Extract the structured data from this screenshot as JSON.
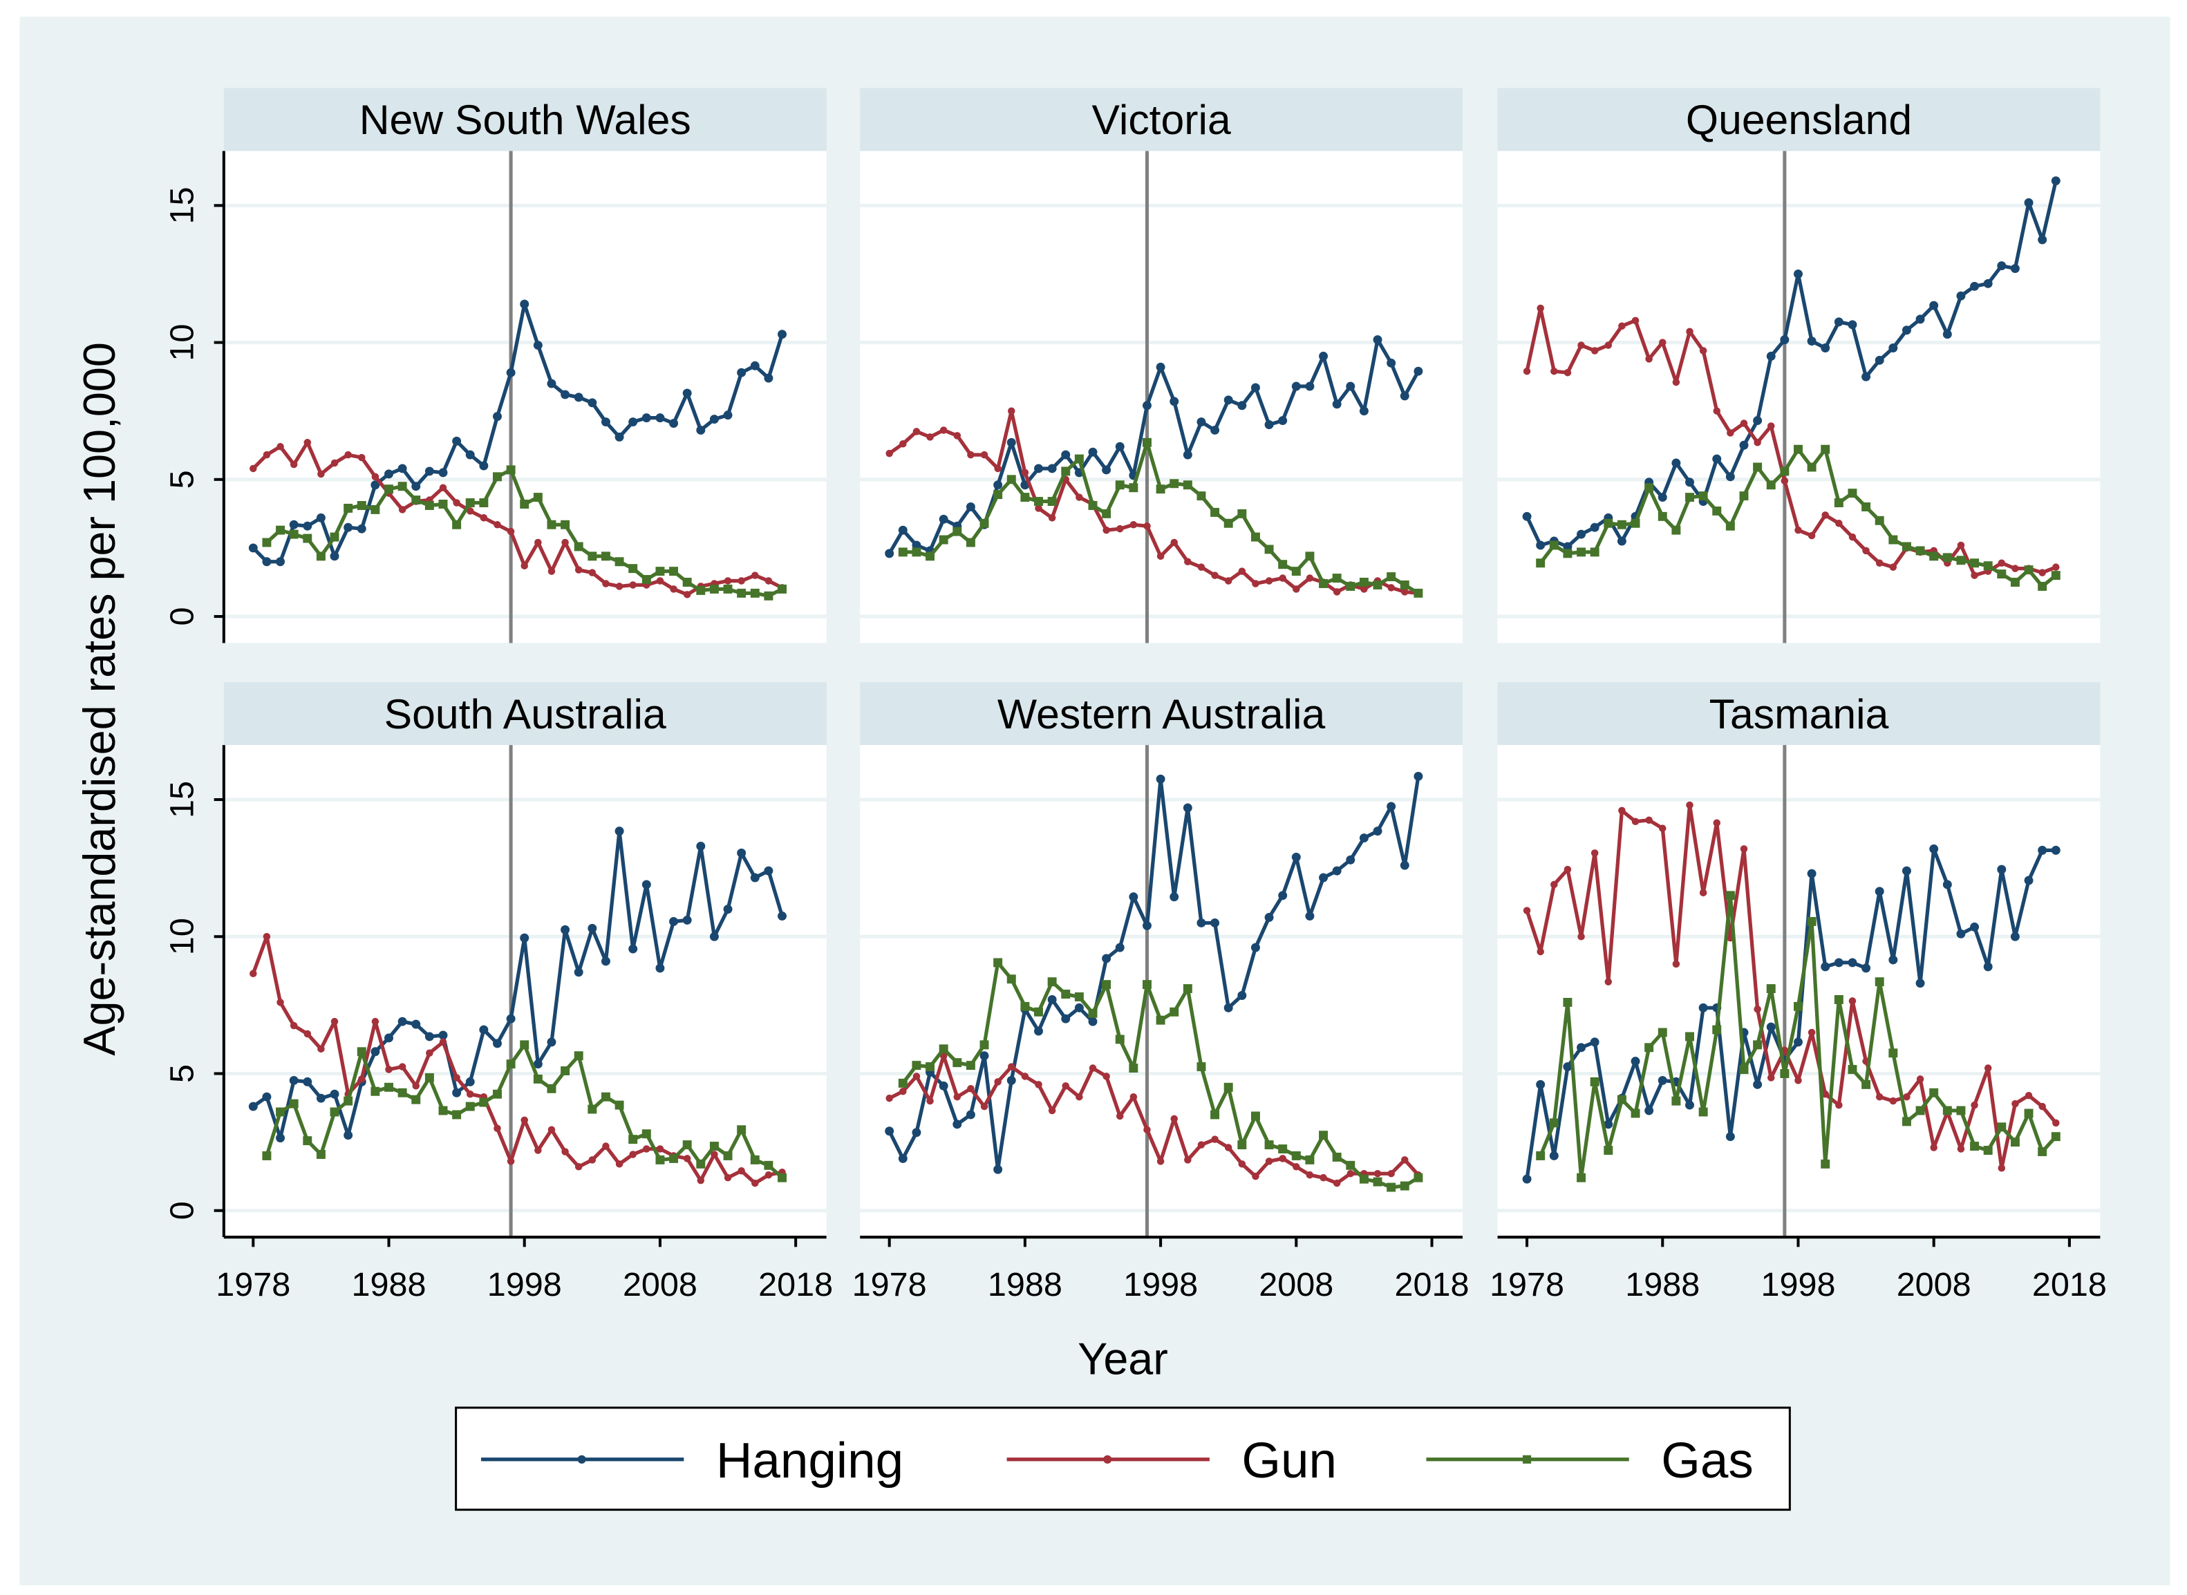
{
  "chart_data": {
    "type": "line",
    "layout": "small-multiples 2x3",
    "ylabel": "Age-standardised rates per 100,000",
    "xlabel": "Year",
    "xticks": [
      1978,
      1988,
      1998,
      2008,
      2018
    ],
    "yticks": [
      0,
      5,
      10,
      15
    ],
    "xlim": [
      1978,
      2018
    ],
    "ylim": [
      0,
      15
    ],
    "reference_line_year": 1997,
    "grid": true,
    "legend": {
      "placement": "bottom",
      "entries": [
        "Hanging",
        "Gun",
        "Gas"
      ]
    },
    "colors": {
      "Hanging": "#1a476f",
      "Gun": "#a5313b",
      "Gas": "#46742a"
    },
    "years": [
      1978,
      1979,
      1980,
      1981,
      1982,
      1983,
      1984,
      1985,
      1986,
      1987,
      1988,
      1989,
      1990,
      1991,
      1992,
      1993,
      1994,
      1995,
      1996,
      1997,
      1998,
      1999,
      2000,
      2001,
      2002,
      2003,
      2004,
      2005,
      2006,
      2007,
      2008,
      2009,
      2010,
      2011,
      2012,
      2013,
      2014,
      2015,
      2016,
      2017
    ],
    "panels": [
      {
        "title": "New South Wales",
        "series": [
          {
            "name": "Hanging",
            "values": [
              2.5,
              2.0,
              2.0,
              3.35,
              3.3,
              3.6,
              2.2,
              3.25,
              3.2,
              4.8,
              5.2,
              5.4,
              4.75,
              5.3,
              5.25,
              6.4,
              5.9,
              5.5,
              7.3,
              8.9,
              11.4,
              9.9,
              8.5,
              8.1,
              8.0,
              7.8,
              7.1,
              6.55,
              7.1,
              7.25,
              7.25,
              7.05,
              8.15,
              6.8,
              7.2,
              7.35,
              8.9,
              9.15,
              8.7,
              10.3
            ]
          },
          {
            "name": "Gun",
            "values": [
              5.4,
              5.9,
              6.2,
              5.55,
              6.35,
              5.2,
              5.6,
              5.9,
              5.8,
              5.1,
              4.5,
              3.9,
              4.2,
              4.25,
              4.7,
              4.15,
              3.85,
              3.6,
              3.35,
              3.1,
              1.85,
              2.7,
              1.65,
              2.7,
              1.7,
              1.6,
              1.2,
              1.1,
              1.15,
              1.15,
              1.3,
              1.0,
              0.8,
              1.1,
              1.2,
              1.3,
              1.3,
              1.5,
              1.3,
              1.05
            ]
          },
          {
            "name": "Gas",
            "values": [
              null,
              2.7,
              3.15,
              3.0,
              2.85,
              2.2,
              2.9,
              3.95,
              4.05,
              3.9,
              4.65,
              4.75,
              4.25,
              4.05,
              4.1,
              3.35,
              4.15,
              4.15,
              5.1,
              5.35,
              4.1,
              4.35,
              3.35,
              3.35,
              2.55,
              2.2,
              2.2,
              2.0,
              1.75,
              1.35,
              1.65,
              1.65,
              1.25,
              0.95,
              1.0,
              1.0,
              0.85,
              0.85,
              0.75,
              1.0
            ]
          }
        ]
      },
      {
        "title": "Victoria",
        "series": [
          {
            "name": "Hanging",
            "values": [
              2.3,
              3.15,
              2.6,
              2.4,
              3.55,
              3.3,
              4.0,
              3.35,
              4.8,
              6.35,
              4.8,
              5.4,
              5.4,
              5.9,
              5.25,
              6.0,
              5.35,
              6.2,
              5.15,
              7.7,
              9.1,
              7.85,
              5.9,
              7.1,
              6.8,
              7.9,
              7.7,
              8.35,
              7.0,
              7.15,
              8.4,
              8.4,
              9.5,
              7.75,
              8.4,
              7.5,
              10.1,
              9.25,
              8.05,
              8.95
            ]
          },
          {
            "name": "Gun",
            "values": [
              5.95,
              6.3,
              6.75,
              6.55,
              6.8,
              6.6,
              5.9,
              5.9,
              5.4,
              7.5,
              5.25,
              3.95,
              3.6,
              5.0,
              4.35,
              4.1,
              3.15,
              3.2,
              3.35,
              3.3,
              2.2,
              2.7,
              2.0,
              1.8,
              1.5,
              1.3,
              1.65,
              1.2,
              1.3,
              1.4,
              1.0,
              1.4,
              1.25,
              0.9,
              1.15,
              1.0,
              1.3,
              1.05,
              0.9,
              0.85
            ]
          },
          {
            "name": "Gas",
            "values": [
              null,
              2.35,
              2.35,
              2.2,
              2.8,
              3.1,
              2.7,
              3.4,
              4.45,
              5.0,
              4.35,
              4.2,
              4.2,
              5.3,
              5.75,
              4.05,
              3.75,
              4.8,
              4.7,
              6.35,
              4.65,
              4.85,
              4.8,
              4.4,
              3.8,
              3.4,
              3.75,
              2.9,
              2.45,
              1.9,
              1.65,
              2.2,
              1.2,
              1.4,
              1.1,
              1.25,
              1.15,
              1.45,
              1.15,
              0.85
            ]
          }
        ]
      },
      {
        "title": "Queensland",
        "series": [
          {
            "name": "Hanging",
            "values": [
              3.65,
              2.6,
              2.75,
              2.55,
              3.0,
              3.25,
              3.6,
              2.75,
              3.65,
              4.9,
              4.35,
              5.6,
              4.9,
              4.2,
              5.75,
              5.1,
              6.25,
              7.15,
              9.5,
              10.1,
              12.5,
              10.05,
              9.8,
              10.75,
              10.65,
              8.75,
              9.35,
              9.8,
              10.45,
              10.85,
              11.35,
              10.3,
              11.7,
              12.05,
              12.15,
              12.8,
              12.7,
              15.1,
              13.75,
              15.9
            ]
          },
          {
            "name": "Gun",
            "values": [
              8.95,
              11.25,
              8.95,
              8.9,
              9.9,
              9.7,
              9.9,
              10.6,
              10.8,
              9.4,
              10.0,
              8.55,
              10.4,
              9.7,
              7.5,
              6.7,
              7.05,
              6.35,
              6.95,
              4.95,
              3.15,
              2.95,
              3.7,
              3.4,
              2.9,
              2.4,
              1.95,
              1.8,
              2.5,
              2.35,
              2.4,
              1.95,
              2.6,
              1.5,
              1.65,
              1.95,
              1.75,
              1.75,
              1.6,
              1.8
            ]
          },
          {
            "name": "Gas",
            "values": [
              null,
              1.95,
              2.6,
              2.3,
              2.35,
              2.35,
              3.4,
              3.35,
              3.4,
              4.7,
              3.65,
              3.15,
              4.35,
              4.4,
              3.85,
              3.3,
              4.4,
              5.45,
              4.8,
              5.3,
              6.1,
              5.45,
              6.1,
              4.15,
              4.5,
              4.0,
              3.5,
              2.8,
              2.55,
              2.4,
              2.2,
              2.15,
              2.05,
              1.95,
              1.85,
              1.55,
              1.25,
              1.7,
              1.1,
              1.5
            ]
          }
        ]
      },
      {
        "title": "South Australia",
        "series": [
          {
            "name": "Hanging",
            "values": [
              3.8,
              4.15,
              2.65,
              4.75,
              4.7,
              4.1,
              4.25,
              2.75,
              4.7,
              5.8,
              6.3,
              6.9,
              6.8,
              6.35,
              6.4,
              4.3,
              4.7,
              6.6,
              6.1,
              7.0,
              9.95,
              5.35,
              6.15,
              10.25,
              8.7,
              10.3,
              9.1,
              13.85,
              9.55,
              11.9,
              8.85,
              10.55,
              10.6,
              13.3,
              10.0,
              11.0,
              13.05,
              12.15,
              12.4,
              10.75
            ]
          },
          {
            "name": "Gun",
            "values": [
              8.65,
              10.0,
              7.6,
              6.75,
              6.45,
              5.9,
              6.9,
              4.25,
              4.8,
              6.9,
              5.15,
              5.25,
              4.55,
              5.75,
              6.15,
              4.85,
              4.25,
              4.15,
              3.0,
              1.8,
              3.3,
              2.2,
              2.95,
              2.15,
              1.6,
              1.85,
              2.35,
              1.7,
              2.05,
              2.25,
              2.25,
              2.0,
              1.9,
              1.1,
              2.05,
              1.2,
              1.45,
              1.0,
              1.3,
              1.4
            ]
          },
          {
            "name": "Gas",
            "values": [
              null,
              2.0,
              3.6,
              3.9,
              2.55,
              2.05,
              3.6,
              4.0,
              5.8,
              4.35,
              4.5,
              4.3,
              4.05,
              4.85,
              3.65,
              3.5,
              3.8,
              3.95,
              4.25,
              5.35,
              6.05,
              4.8,
              4.45,
              5.1,
              5.65,
              3.7,
              4.15,
              3.85,
              2.6,
              2.8,
              1.85,
              1.9,
              2.4,
              1.7,
              2.35,
              2.0,
              2.95,
              1.85,
              1.65,
              1.2
            ]
          }
        ]
      },
      {
        "title": "Western Australia",
        "series": [
          {
            "name": "Hanging",
            "values": [
              2.9,
              1.9,
              2.85,
              5.05,
              4.55,
              3.15,
              3.5,
              5.65,
              1.5,
              4.75,
              7.35,
              6.55,
              7.7,
              7.0,
              7.4,
              6.9,
              9.2,
              9.6,
              11.45,
              10.4,
              15.75,
              11.45,
              14.7,
              10.5,
              10.5,
              7.4,
              7.85,
              9.6,
              10.7,
              11.5,
              12.9,
              10.75,
              12.15,
              12.4,
              12.8,
              13.6,
              13.85,
              14.75,
              12.6,
              15.85
            ]
          },
          {
            "name": "Gun",
            "values": [
              4.1,
              4.35,
              4.9,
              4.0,
              5.65,
              4.15,
              4.45,
              3.8,
              4.7,
              5.25,
              4.9,
              4.6,
              3.65,
              4.55,
              4.15,
              5.2,
              4.9,
              3.45,
              4.15,
              2.95,
              1.8,
              3.35,
              1.85,
              2.4,
              2.6,
              2.3,
              1.7,
              1.25,
              1.8,
              1.9,
              1.6,
              1.3,
              1.2,
              1.0,
              1.35,
              1.35,
              1.35,
              1.35,
              1.85,
              1.3
            ]
          },
          {
            "name": "Gas",
            "values": [
              null,
              4.65,
              5.3,
              5.25,
              5.9,
              5.4,
              5.3,
              6.05,
              9.05,
              8.45,
              7.45,
              7.25,
              8.35,
              7.9,
              7.8,
              7.2,
              8.25,
              6.25,
              5.2,
              8.25,
              6.95,
              7.25,
              8.1,
              5.25,
              3.5,
              4.5,
              2.4,
              3.45,
              2.4,
              2.25,
              2.0,
              1.85,
              2.75,
              1.95,
              1.65,
              1.15,
              1.05,
              0.85,
              0.9,
              1.2
            ]
          }
        ]
      },
      {
        "title": "Tasmania",
        "series": [
          {
            "name": "Hanging",
            "values": [
              1.15,
              4.6,
              2.0,
              5.25,
              5.95,
              6.15,
              3.15,
              4.1,
              5.45,
              3.65,
              4.75,
              4.7,
              3.85,
              7.4,
              7.4,
              2.7,
              6.5,
              4.6,
              6.7,
              5.5,
              6.15,
              12.3,
              8.9,
              9.05,
              9.05,
              8.85,
              11.65,
              9.15,
              12.4,
              8.3,
              13.2,
              11.9,
              10.1,
              10.35,
              8.9,
              12.45,
              10.0,
              12.05,
              13.15,
              13.15
            ]
          },
          {
            "name": "Gun",
            "values": [
              10.95,
              9.45,
              11.9,
              12.45,
              10.0,
              13.05,
              8.35,
              14.6,
              14.2,
              14.25,
              13.95,
              9.0,
              14.8,
              11.6,
              14.15,
              9.95,
              13.2,
              7.35,
              4.85,
              5.85,
              4.75,
              6.5,
              4.25,
              3.85,
              7.65,
              5.45,
              4.15,
              4.0,
              4.15,
              4.8,
              2.3,
              3.6,
              2.25,
              3.85,
              5.2,
              1.55,
              3.9,
              4.2,
              3.8,
              3.2
            ]
          },
          {
            "name": "Gas",
            "values": [
              null,
              2.0,
              3.2,
              7.6,
              1.2,
              4.7,
              2.2,
              4.05,
              3.55,
              5.95,
              6.5,
              4.0,
              6.35,
              3.6,
              6.6,
              11.5,
              5.15,
              6.05,
              8.1,
              5.0,
              7.45,
              10.55,
              1.7,
              7.7,
              5.15,
              4.6,
              8.35,
              5.75,
              3.25,
              3.65,
              4.3,
              3.65,
              3.65,
              2.35,
              2.2,
              3.05,
              2.5,
              3.55,
              2.15,
              2.7
            ]
          }
        ]
      }
    ]
  }
}
